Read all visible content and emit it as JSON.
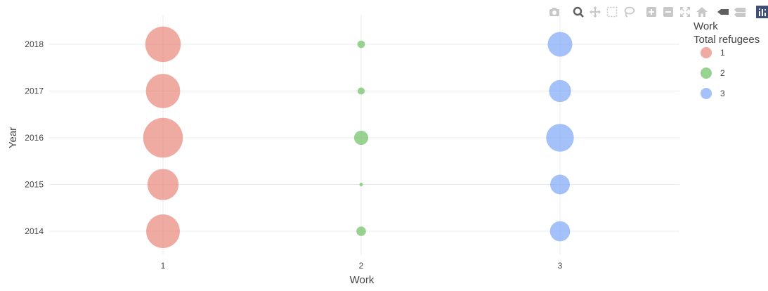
{
  "chart_data": {
    "type": "scatter",
    "subtype": "bubble",
    "xlabel": "Work",
    "ylabel": "Year",
    "x_categories": [
      "1",
      "2",
      "3"
    ],
    "y_ticks": [
      "2014",
      "2015",
      "2016",
      "2017",
      "2018"
    ],
    "legend": {
      "title_line1": "Work",
      "title_line2": "Total refugees",
      "placement": "top-right"
    },
    "grid": true,
    "series": [
      {
        "name": "1",
        "color": "#e8867a",
        "points": [
          {
            "x": "1",
            "y": 2018,
            "size": 0.62
          },
          {
            "x": "1",
            "y": 2017,
            "size": 0.58
          },
          {
            "x": "1",
            "y": 2016,
            "size": 0.78
          },
          {
            "x": "1",
            "y": 2015,
            "size": 0.48
          },
          {
            "x": "1",
            "y": 2014,
            "size": 0.56
          }
        ]
      },
      {
        "name": "2",
        "color": "#6cc063",
        "points": [
          {
            "x": "2",
            "y": 2018,
            "size": 0.028
          },
          {
            "x": "2",
            "y": 2017,
            "size": 0.025
          },
          {
            "x": "2",
            "y": 2016,
            "size": 0.1
          },
          {
            "x": "2",
            "y": 2015,
            "size": 0.002
          },
          {
            "x": "2",
            "y": 2014,
            "size": 0.045
          }
        ]
      },
      {
        "name": "3",
        "color": "#7ea6f8",
        "points": [
          {
            "x": "3",
            "y": 2018,
            "size": 0.3
          },
          {
            "x": "3",
            "y": 2017,
            "size": 0.24
          },
          {
            "x": "3",
            "y": 2016,
            "size": 0.38
          },
          {
            "x": "3",
            "y": 2015,
            "size": 0.19
          },
          {
            "x": "3",
            "y": 2014,
            "size": 0.2
          }
        ]
      }
    ]
  },
  "modebar": [
    {
      "name": "camera-icon"
    },
    {
      "name": "zoom-icon"
    },
    {
      "name": "pan-icon"
    },
    {
      "name": "box-select-icon"
    },
    {
      "name": "lasso-select-icon"
    },
    {
      "name": "zoom-in-icon"
    },
    {
      "name": "zoom-out-icon"
    },
    {
      "name": "autoscale-icon"
    },
    {
      "name": "reset-axes-icon"
    },
    {
      "name": "hover-closest-icon"
    },
    {
      "name": "hover-compare-icon"
    },
    {
      "name": "plotly-logo-icon"
    }
  ]
}
